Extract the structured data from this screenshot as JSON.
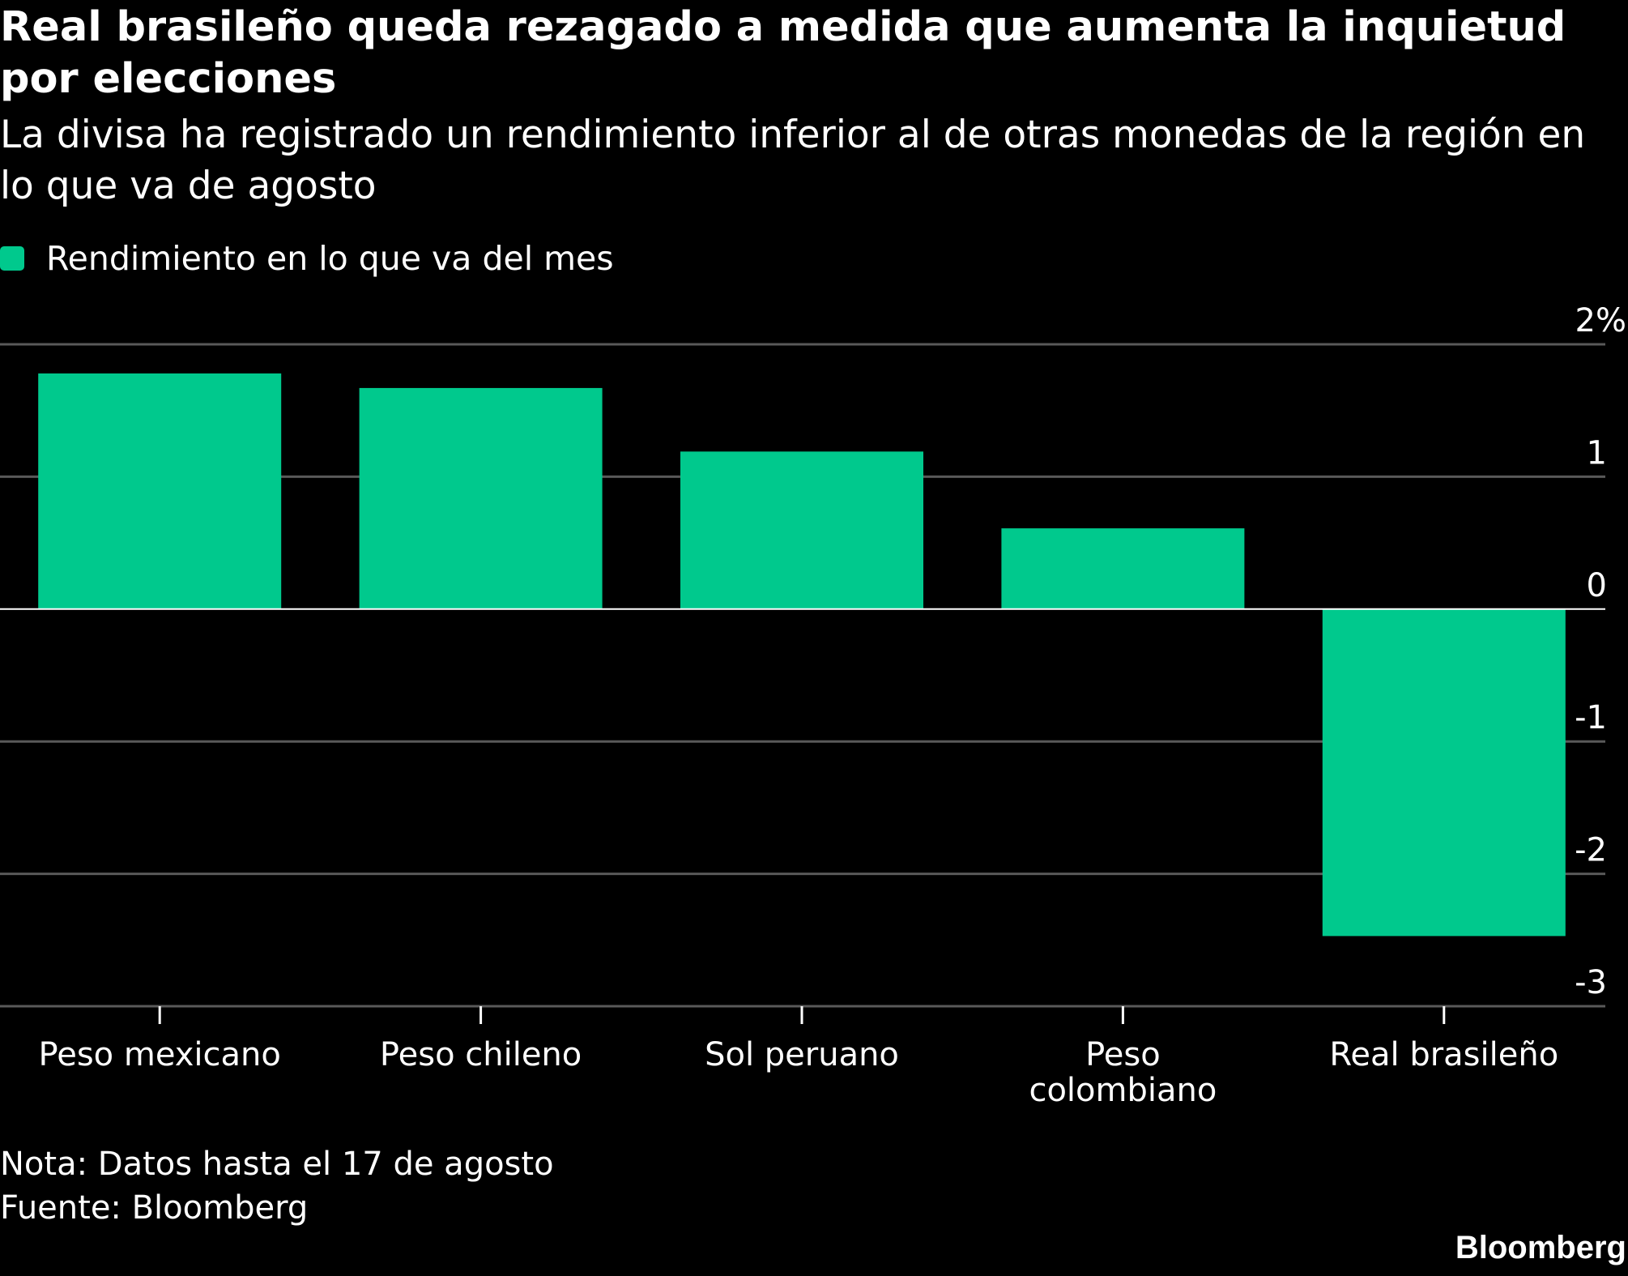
{
  "title": "Real brasileño queda rezagado a medida que aumenta la inquietud por elecciones",
  "subtitle": "La divisa ha registrado un rendimiento inferior al de otras monedas de la región en lo que va de agosto",
  "note": "Nota: Datos hasta el 17 de agosto",
  "source": "Fuente: Bloomberg",
  "brand": "Bloomberg",
  "colors": {
    "bar": "#00C98D",
    "background": "#000000",
    "grid": "#595959",
    "zero_line": "#FFFFFF",
    "text": "#FFFFFF"
  },
  "chart_data": {
    "type": "bar",
    "title": "Real brasileño queda rezagado a medida que aumenta la inquietud por elecciones",
    "subtitle": "La divisa ha registrado un rendimiento inferior al de otras monedas de la región en lo que va de agosto",
    "categories": [
      "Peso mexicano",
      "Peso chileno",
      "Sol peruano",
      "Peso colombiano",
      "Real brasileño"
    ],
    "category_label_lines": [
      [
        "Peso mexicano"
      ],
      [
        "Peso chileno"
      ],
      [
        "Sol peruano"
      ],
      [
        "Peso",
        "colombiano"
      ],
      [
        "Real brasileño"
      ]
    ],
    "series": [
      {
        "name": "Rendimiento en lo que va del mes",
        "values": [
          1.78,
          1.67,
          1.19,
          0.61,
          -2.47
        ]
      }
    ],
    "ylim": [
      -3,
      2
    ],
    "yticks": [
      2,
      1,
      0,
      -1,
      -2,
      -3
    ],
    "ytick_labels": [
      "2%",
      "1",
      "0",
      "-1",
      "-2",
      "-3"
    ],
    "xlabel": "",
    "ylabel": "",
    "grid": true,
    "legend_position": "top-left"
  }
}
